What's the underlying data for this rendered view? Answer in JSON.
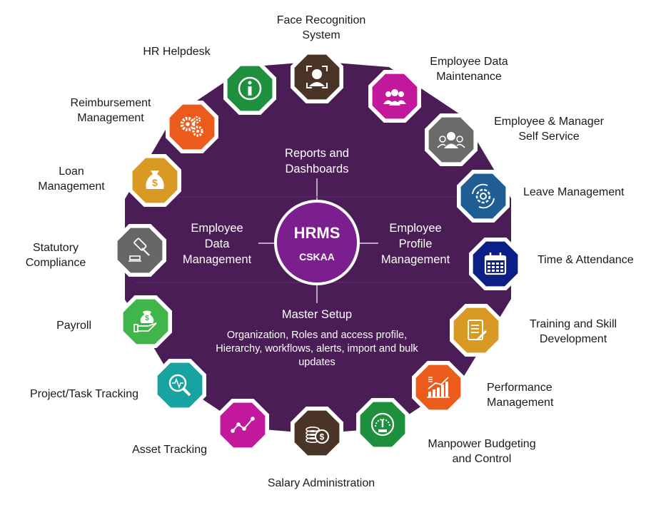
{
  "hub": {
    "title": "HRMS",
    "subtitle": "CSKAA"
  },
  "core": {
    "top": "Reports and\nDashboards",
    "left": "Employee\nData\nManagement",
    "right": "Employee\nProfile\nManagement",
    "bottom_title": "Master Setup",
    "bottom_detail": "Organization, Roles and access profile, Hierarchy, workflows, alerts, import and bulk updates"
  },
  "modules": [
    {
      "label": "Face Recognition\nSystem",
      "icon": "face-recognition-icon",
      "color": "#4a3428"
    },
    {
      "label": "Employee Data\nMaintenance",
      "icon": "people-group-icon",
      "color": "#c1189c"
    },
    {
      "label": "Employee & Manager\nSelf Service",
      "icon": "user-group-icon",
      "color": "#6b6b6b"
    },
    {
      "label": "Leave Management",
      "icon": "gear-cycle-icon",
      "color": "#1f5e94"
    },
    {
      "label": "Time & Attendance",
      "icon": "calendar-icon",
      "color": "#0b1f86"
    },
    {
      "label": "Training and Skill\nDevelopment",
      "icon": "document-pen-icon",
      "color": "#d99a23"
    },
    {
      "label": "Performance\nManagement",
      "icon": "growth-chart-icon",
      "color": "#ea5b1c"
    },
    {
      "label": "Manpower Budgeting\nand Control",
      "icon": "gauge-icon",
      "color": "#1e8f3d"
    },
    {
      "label": "Salary Administration",
      "icon": "coins-icon",
      "color": "#4a3428"
    },
    {
      "label": "Asset Tracking",
      "icon": "line-graph-icon",
      "color": "#c1189c"
    },
    {
      "label": "Project/Task Tracking",
      "icon": "magnifier-pulse-icon",
      "color": "#17a3a0"
    },
    {
      "label": "Payroll",
      "icon": "money-hand-icon",
      "color": "#3fb54a"
    },
    {
      "label": "Statutory\nCompliance",
      "icon": "gavel-icon",
      "color": "#676767"
    },
    {
      "label": "Loan\nManagement",
      "icon": "money-bag-icon",
      "color": "#d99a23"
    },
    {
      "label": "Reimbursement\nManagement",
      "icon": "gears-icon",
      "color": "#ea5b1c"
    },
    {
      "label": "HR Helpdesk",
      "icon": "info-icon",
      "color": "#1e8f3d"
    }
  ],
  "colors": {
    "ring": "#4b1d56",
    "hub": "#7b1f8f"
  }
}
